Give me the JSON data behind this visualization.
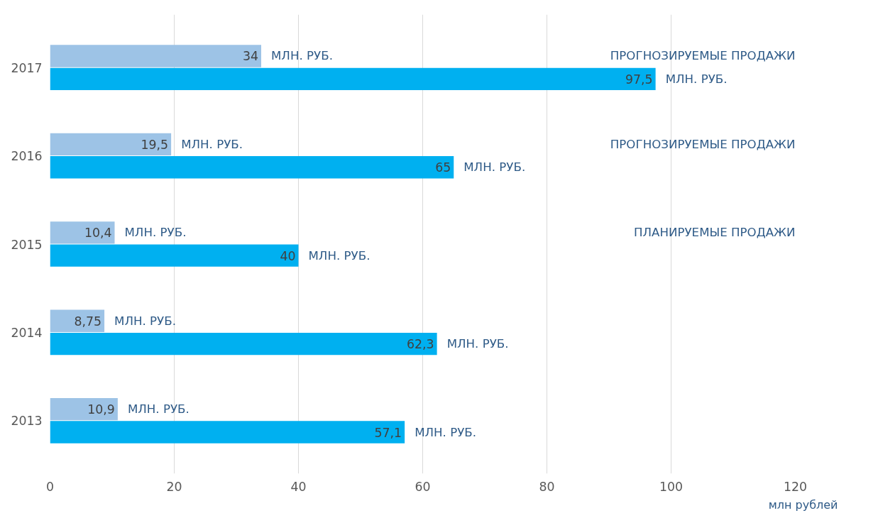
{
  "chart_data": {
    "type": "bar",
    "orientation": "horizontal",
    "xlabel": "млн рублей",
    "categories": [
      "2017",
      "2016",
      "2015",
      "2014",
      "2013"
    ],
    "series": [
      {
        "color": "#9dc3e6",
        "values": [
          34,
          19.5,
          10.4,
          8.75,
          10.9
        ],
        "value_labels": [
          "34",
          "19,5",
          "10,4",
          "8,75",
          "10,9"
        ]
      },
      {
        "color": "#00b0f0",
        "values": [
          97.5,
          65,
          40,
          62.3,
          57.1
        ],
        "value_labels": [
          "97,5",
          "65",
          "40",
          "62,3",
          "57,1"
        ]
      }
    ],
    "xlim": [
      0,
      120
    ],
    "xticks": [
      0,
      20,
      40,
      60,
      80,
      100,
      120
    ],
    "grid": "x",
    "annotations": [
      {
        "text": "МЛН. РУБ.",
        "x": 34,
        "y": "2017"
      },
      {
        "text": "МЛН. РУБ.",
        "x": 97.5,
        "y": "2017"
      },
      {
        "text": "МЛН. РУБ.",
        "x": 19.5,
        "y": "2016"
      },
      {
        "text": "МЛН. РУБ.",
        "x": 65,
        "y": "2016"
      },
      {
        "text": "МЛН. РУБ.",
        "x": 10.4,
        "y": "2015"
      },
      {
        "text": "МЛН. РУБ.",
        "x": 40,
        "y": "2015"
      },
      {
        "text": "МЛН. РУБ.",
        "x": 8.75,
        "y": "2014"
      },
      {
        "text": "МЛН. РУБ.",
        "x": 62.3,
        "y": "2014"
      },
      {
        "text": "МЛН. РУБ.",
        "x": 10.9,
        "y": "2013"
      },
      {
        "text": "МЛН. РУБ.",
        "x": 57.1,
        "y": "2013"
      },
      "ПРОГНОЗИРУЕМЫЕ ПРОДАЖИ",
      "ПРОГНОЗИРУЕМЫЕ ПРОДАЖИ",
      "ПЛАНИРУЕМЫЕ ПРОДАЖИ"
    ]
  }
}
